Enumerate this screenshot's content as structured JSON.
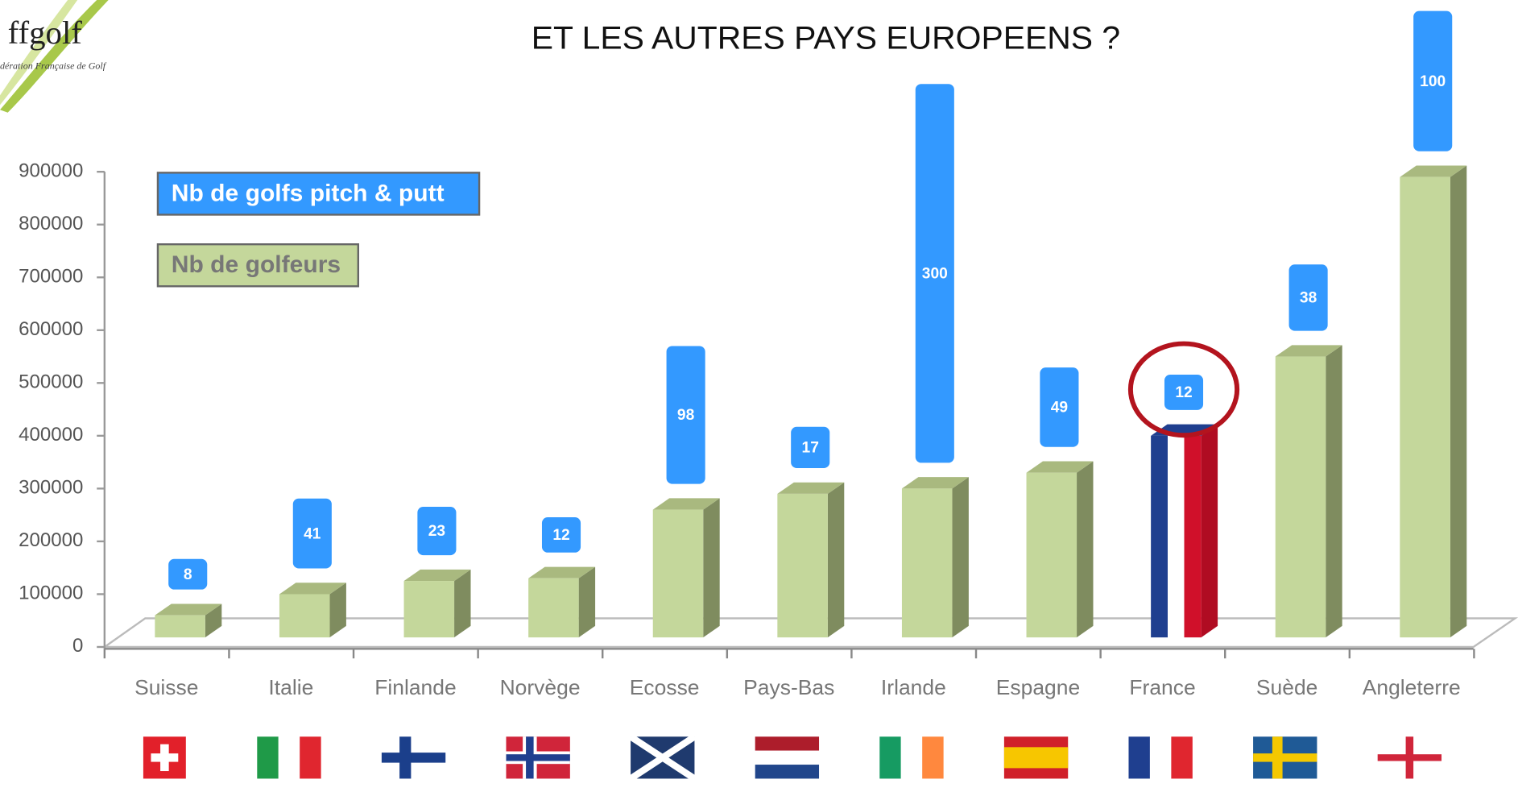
{
  "logo": {
    "name": "ffgolf",
    "subtitle": "dération Française de Golf"
  },
  "chart_data": {
    "type": "bar3d",
    "title": "ET LES AUTRES PAYS EUROPEENS ?",
    "categories": [
      "Suisse",
      "Italie",
      "Finlande",
      "Norvège",
      "Ecosse",
      "Pays-Bas",
      "Irlande",
      "Espagne",
      "France",
      "Suède",
      "Angleterre"
    ],
    "series": [
      {
        "name": "Nb de golfeurs",
        "color": "#c4d79b",
        "values": [
          60000,
          100000,
          125000,
          130000,
          260000,
          290000,
          300000,
          330000,
          400000,
          550000,
          890000
        ]
      },
      {
        "name": "Nb de golfs pitch & putt",
        "color": "#3399ff",
        "values": [
          8,
          41,
          23,
          12,
          98,
          17,
          300,
          49,
          12,
          38,
          100
        ]
      }
    ],
    "highlight_category": "France",
    "ylim": [
      0,
      900000
    ],
    "yticks": [
      0,
      100000,
      200000,
      300000,
      400000,
      500000,
      600000,
      700000,
      800000,
      900000
    ]
  }
}
